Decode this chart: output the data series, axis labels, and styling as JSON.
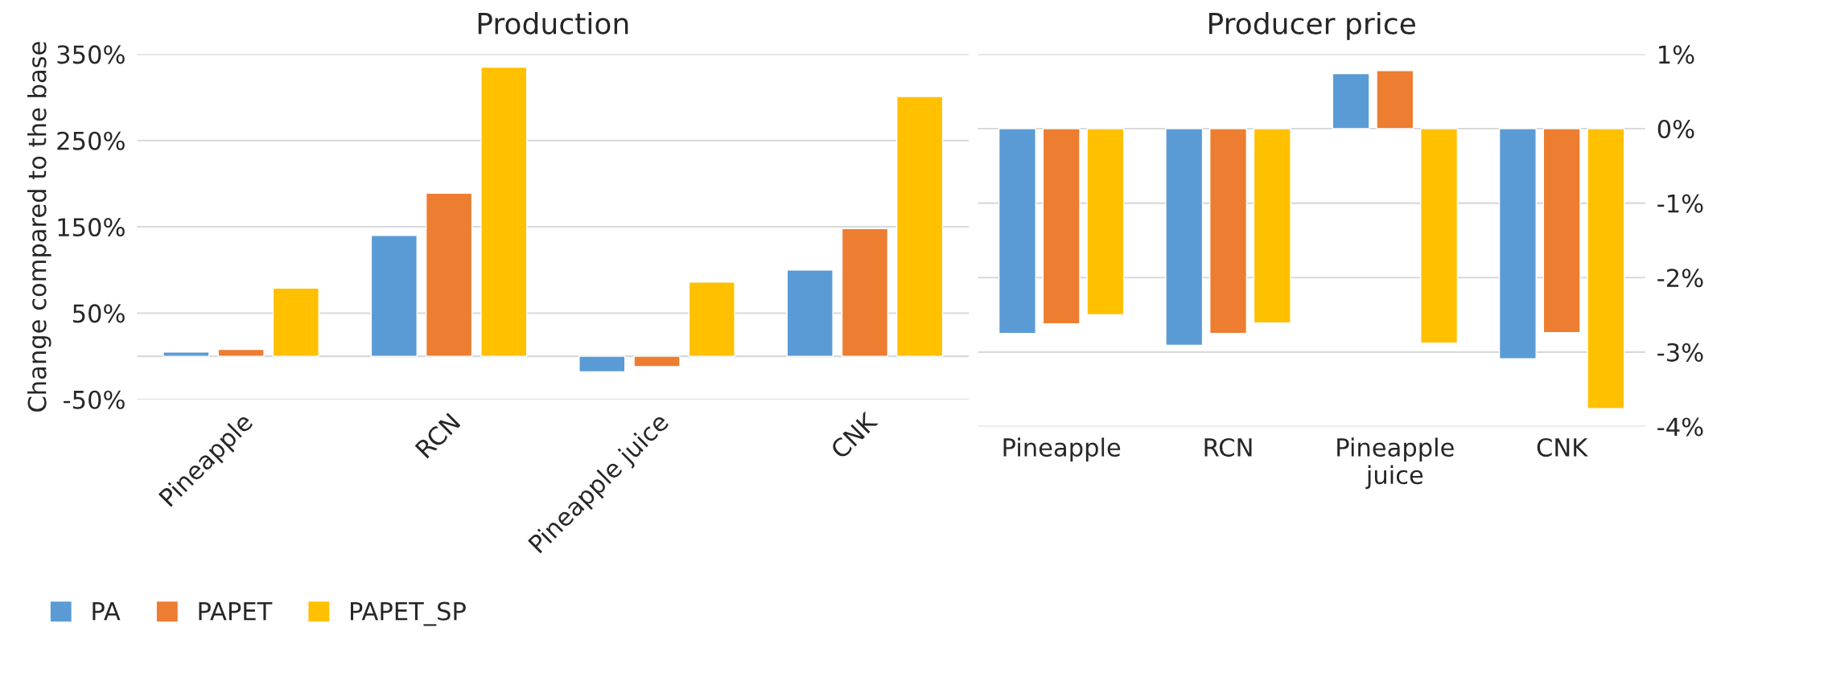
{
  "chart_data": [
    {
      "type": "bar",
      "title": "Production",
      "ylabel": "Change compared to the base",
      "categories": [
        "Pineapple",
        "RCN",
        "Pineapple juice",
        "CNK"
      ],
      "series": [
        {
          "name": "PA",
          "color": "#5b9bd5",
          "values": [
            5,
            140,
            -18,
            100
          ]
        },
        {
          "name": "PAPET",
          "color": "#ed7d31",
          "values": [
            8,
            189,
            -12,
            148
          ]
        },
        {
          "name": "PAPET_SP",
          "color": "#ffc000",
          "values": [
            79,
            335,
            86,
            301
          ]
        }
      ],
      "ylim": [
        -50,
        350
      ],
      "yticks": [
        {
          "value": -50,
          "label": "-50%"
        },
        {
          "value": 50,
          "label": "50%"
        },
        {
          "value": 150,
          "label": "150%"
        },
        {
          "value": 250,
          "label": "250%"
        },
        {
          "value": 350,
          "label": "350%"
        }
      ],
      "grid": "y",
      "legend": "bottom"
    },
    {
      "type": "bar",
      "title": "Producer price",
      "categories": [
        "Pineapple",
        "RCN",
        "Pineapple\njuice",
        "CNK"
      ],
      "series": [
        {
          "color": "#5b9bd5",
          "axis": "y2",
          "values": [
            -2.75,
            -2.91,
            0.74,
            -3.09
          ]
        },
        {
          "color": "#ed7d31",
          "axis": "y2",
          "values": [
            -2.62,
            -2.75,
            0.78,
            -2.74
          ]
        },
        {
          "color": "#ffc000",
          "axis": "y2",
          "values": [
            -2.5,
            -2.61,
            -2.88,
            -3.76
          ]
        }
      ],
      "y2lim": [
        -4,
        1
      ],
      "y2ticks": [
        {
          "value": -4,
          "label": "-4%"
        },
        {
          "value": -3,
          "label": "-3%"
        },
        {
          "value": -2,
          "label": "-2%"
        },
        {
          "value": -1,
          "label": "-1%"
        },
        {
          "value": 0,
          "label": "0%"
        },
        {
          "value": 1,
          "label": "1%"
        }
      ],
      "grid": "y"
    }
  ]
}
